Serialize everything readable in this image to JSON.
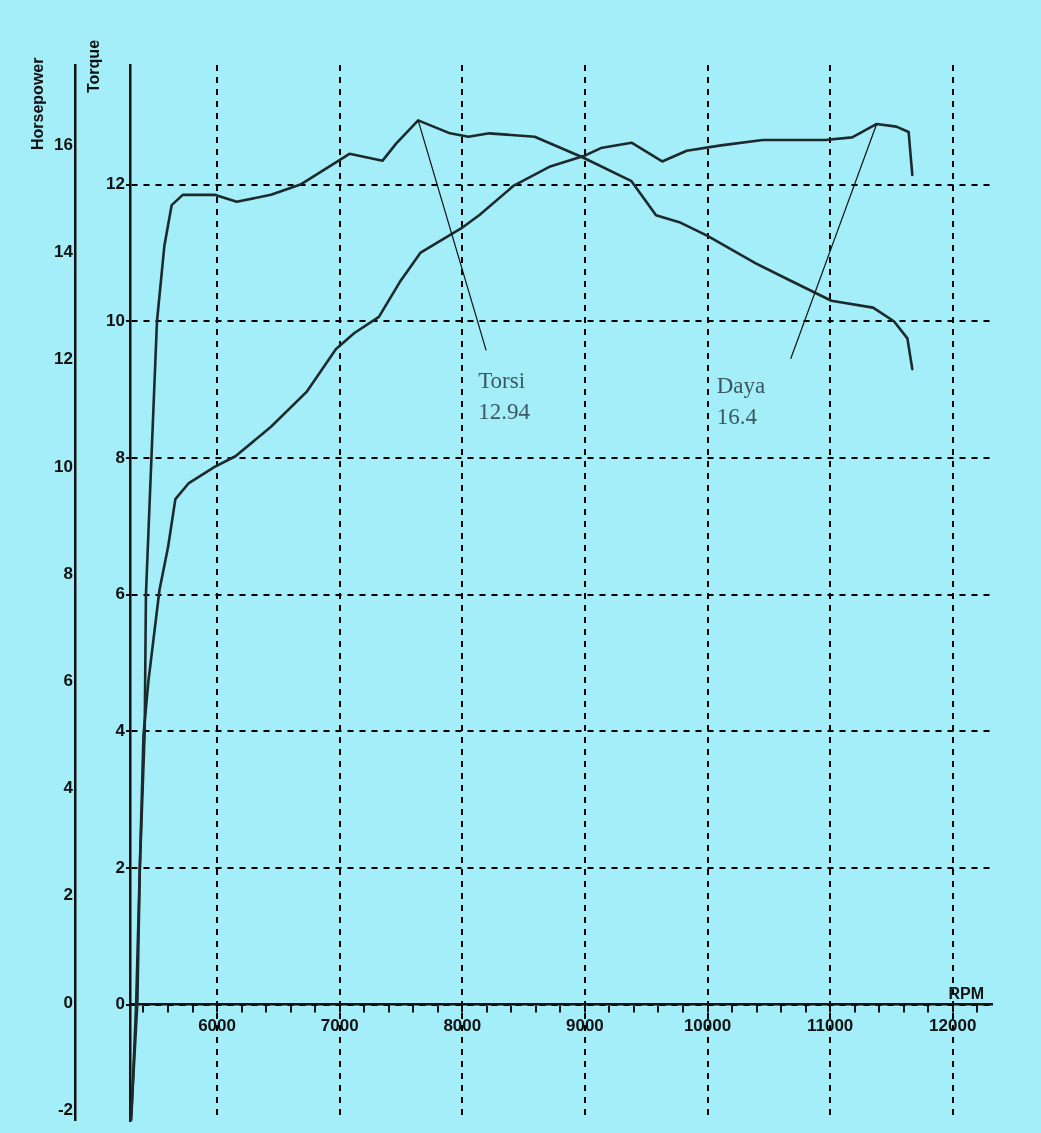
{
  "chart_data": {
    "type": "line",
    "xlabel": "RPM",
    "ylabel": "Torque",
    "y2label": "Horsepower",
    "xlim": [
      5290,
      12320
    ],
    "ylim": [
      -1.7,
      13.75
    ],
    "y2lim": [
      -2.2,
      17.5
    ],
    "xticks": [
      {
        "value": 5400,
        "label": null
      },
      {
        "value": 5600,
        "label": null
      },
      {
        "value": 5800,
        "label": null
      },
      6000,
      {
        "value": 6200,
        "label": null
      },
      {
        "value": 6400,
        "label": null
      },
      {
        "value": 6600,
        "label": null
      },
      {
        "value": 6800,
        "label": null
      },
      7000,
      {
        "value": 7200,
        "label": null
      },
      {
        "value": 7400,
        "label": null
      },
      {
        "value": 7600,
        "label": null
      },
      {
        "value": 7800,
        "label": null
      },
      8000,
      {
        "value": 8200,
        "label": null
      },
      {
        "value": 8400,
        "label": null
      },
      {
        "value": 8600,
        "label": null
      },
      {
        "value": 8800,
        "label": null
      },
      9000,
      {
        "value": 9200,
        "label": null
      },
      {
        "value": 9400,
        "label": null
      },
      {
        "value": 9600,
        "label": null
      },
      {
        "value": 9800,
        "label": null
      },
      10000,
      {
        "value": 10200,
        "label": null
      },
      {
        "value": 10400,
        "label": null
      },
      {
        "value": 10600,
        "label": null
      },
      {
        "value": 10800,
        "label": null
      },
      11000,
      {
        "value": 11200,
        "label": null
      },
      {
        "value": 11400,
        "label": null
      },
      {
        "value": 11600,
        "label": null
      },
      {
        "value": 11800,
        "label": null
      },
      12000,
      {
        "value": 12200,
        "label": null
      }
    ],
    "yticks": [
      0,
      2,
      4,
      6,
      8,
      10,
      12
    ],
    "y2ticks": [
      -2,
      0,
      2,
      4,
      6,
      8,
      10,
      12,
      14,
      16
    ],
    "grid": true,
    "marker": "none",
    "line_style": "solid",
    "series": [
      {
        "color": "#1c2a2c",
        "x": [
          5300,
          5340,
          5370,
          5410,
          5420,
          5440,
          5510,
          5570,
          5630,
          5720,
          5980,
          6160,
          6440,
          6680,
          7080,
          7350,
          7460,
          7640,
          7900,
          8050,
          8220,
          8590,
          8980,
          9380,
          9580,
          9770,
          10000,
          10390,
          10670,
          11010,
          11350,
          11520,
          11630,
          11670
        ],
        "values": [
          -1.7,
          0,
          2,
          4,
          6,
          6.9,
          10,
          11.1,
          11.7,
          11.85,
          11.85,
          11.75,
          11.85,
          12,
          12.45,
          12.35,
          12.6,
          12.94,
          12.75,
          12.7,
          12.75,
          12.7,
          12.4,
          12.05,
          11.55,
          11.45,
          11.25,
          10.85,
          10.6,
          10.3,
          10.2,
          10,
          9.75,
          9.3
        ]
      },
      {
        "color": "#1c2a2c",
        "axis": "y2",
        "x": [
          5300,
          5350,
          5370,
          5400,
          5440,
          5530,
          5600,
          5660,
          5770,
          5980,
          6150,
          6440,
          6730,
          6970,
          7120,
          7320,
          7490,
          7660,
          7990,
          8140,
          8420,
          8710,
          8990,
          9130,
          9380,
          9630,
          9830,
          10110,
          10450,
          10960,
          11180,
          11380,
          11540,
          11640,
          11670
        ],
        "values": [
          -2.1,
          0,
          2.5,
          5,
          6,
          7.7,
          8.5,
          9.4,
          9.7,
          10,
          10.2,
          10.75,
          11.4,
          12.2,
          12.5,
          12.8,
          13.45,
          14,
          14.45,
          14.7,
          15.25,
          15.6,
          15.8,
          15.95,
          16.05,
          15.7,
          15.9,
          16,
          16.1,
          16.1,
          16.15,
          16.4,
          16.35,
          16.25,
          15.45
        ]
      }
    ],
    "annotations": [
      {
        "text": "Torsi\n12.94",
        "x": 7640,
        "y": 12.94
      },
      {
        "text": "Daya\n16.4",
        "x": 11380,
        "y": 12.89
      }
    ]
  }
}
